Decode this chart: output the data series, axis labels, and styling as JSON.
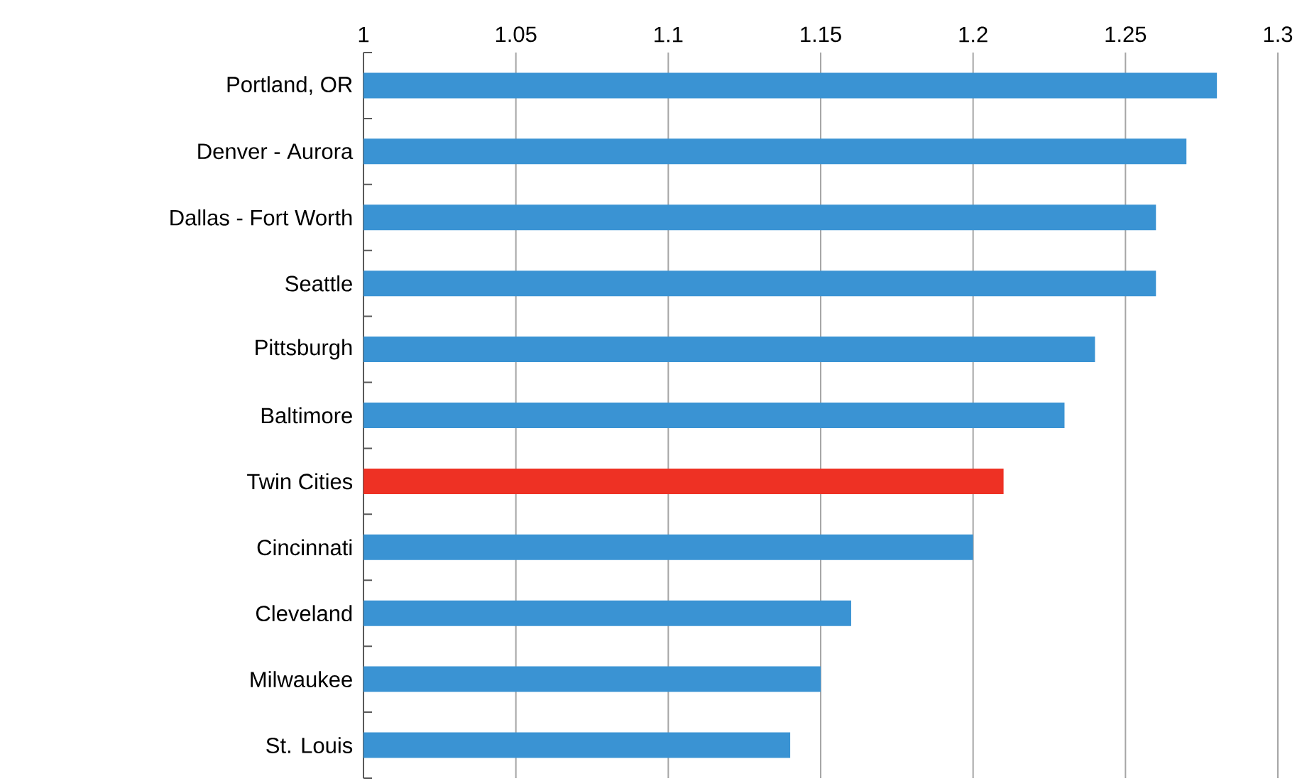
{
  "chart_data": {
    "type": "bar",
    "orientation": "horizontal",
    "categories": [
      "Portland, OR",
      "Denver - Aurora",
      "Dallas - Fort Worth",
      "Seattle",
      "Pittsburgh",
      "Baltimore",
      "Twin Cities",
      "Cincinnati",
      "Cleveland",
      "Milwaukee",
      "St. Louis"
    ],
    "values": [
      1.28,
      1.27,
      1.26,
      1.26,
      1.24,
      1.23,
      1.21,
      1.2,
      1.16,
      1.15,
      1.14
    ],
    "colors": [
      "#3a93d3",
      "#3a93d3",
      "#3a93d3",
      "#3a93d3",
      "#3a93d3",
      "#3a93d3",
      "#ee3124",
      "#3a93d3",
      "#3a93d3",
      "#3a93d3",
      "#3a93d3"
    ],
    "xlim": [
      1,
      1.3
    ],
    "xticks": [
      1,
      1.05,
      1.1,
      1.15,
      1.2,
      1.25,
      1.3
    ],
    "grid": "x"
  }
}
